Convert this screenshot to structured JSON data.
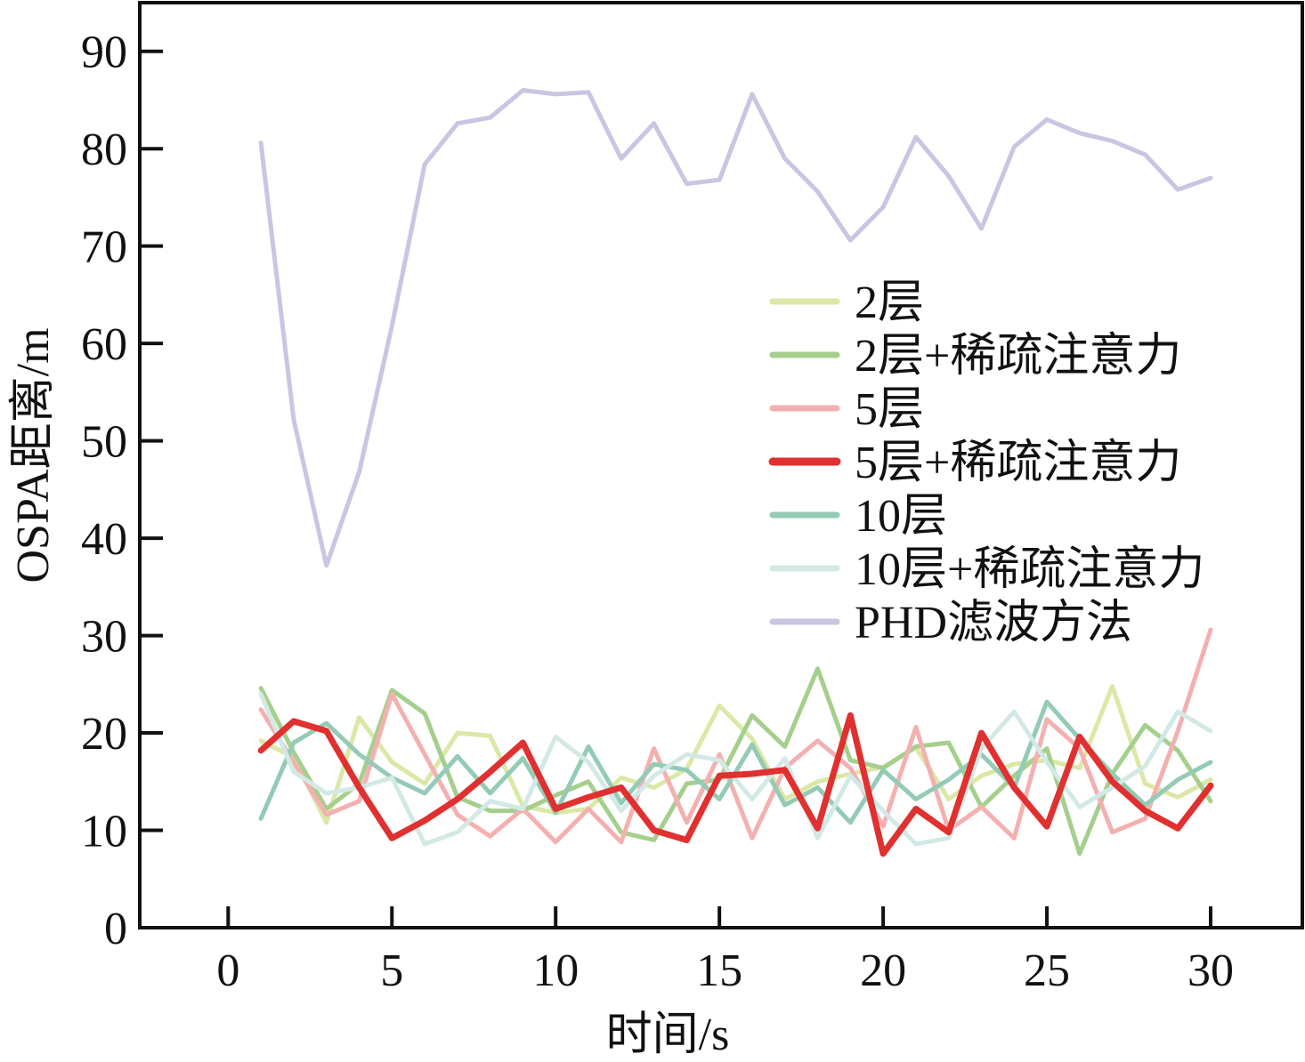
{
  "chart_data": {
    "type": "line",
    "title": "",
    "xlabel": "时间/s",
    "ylabel": "OSPA距离/m",
    "xlim": [
      -2.7,
      32.8
    ],
    "ylim": [
      0,
      95
    ],
    "xticks": [
      0,
      5,
      10,
      15,
      20,
      25,
      30
    ],
    "yticks": [
      0,
      10,
      20,
      30,
      40,
      50,
      60,
      70,
      80,
      90
    ],
    "grid": false,
    "legend_position": "center-right",
    "x": [
      1,
      2,
      3,
      4,
      5,
      6,
      7,
      8,
      9,
      10,
      11,
      12,
      13,
      14,
      15,
      16,
      17,
      18,
      19,
      20,
      21,
      22,
      23,
      24,
      25,
      26,
      27,
      28,
      29,
      30
    ],
    "series": [
      {
        "name": "2层",
        "color": "#dbe8a6",
        "width": 5,
        "values": [
          19.2,
          17.5,
          10.8,
          21.6,
          17.0,
          14.8,
          20.0,
          19.7,
          12.5,
          11.8,
          12.2,
          15.4,
          14.4,
          16.3,
          22.8,
          19.4,
          13.2,
          15.0,
          15.8,
          16.5,
          18.5,
          13.2,
          15.6,
          16.8,
          17.2,
          16.4,
          24.8,
          14.8,
          13.4,
          15.2
        ]
      },
      {
        "name": "2层+稀疏注意力",
        "color": "#a5cf8c",
        "width": 5,
        "values": [
          24.6,
          18.0,
          12.2,
          14.8,
          24.4,
          22.0,
          13.4,
          12.0,
          12.0,
          13.6,
          15.0,
          9.8,
          9.0,
          14.8,
          15.2,
          21.8,
          18.6,
          26.6,
          17.2,
          16.4,
          18.6,
          19.0,
          12.4,
          15.6,
          18.4,
          7.6,
          15.8,
          20.8,
          18.2,
          13.0
        ]
      },
      {
        "name": "5层",
        "color": "#f4b0b0",
        "width": 5,
        "values": [
          22.4,
          17.0,
          11.6,
          13.0,
          24.0,
          17.8,
          11.6,
          9.4,
          12.2,
          8.8,
          12.2,
          8.8,
          18.4,
          10.8,
          17.8,
          9.2,
          16.4,
          19.2,
          16.4,
          10.4,
          20.6,
          10.0,
          12.4,
          9.2,
          21.4,
          18.4,
          9.8,
          11.2,
          20.2,
          30.6
        ]
      },
      {
        "name": "5层+稀疏注意力",
        "color": "#e03030",
        "width": 7,
        "values": [
          18.2,
          21.2,
          20.2,
          14.4,
          9.2,
          11.0,
          13.2,
          16.0,
          19.0,
          12.2,
          13.4,
          14.4,
          10.0,
          9.0,
          15.6,
          15.8,
          16.2,
          10.2,
          21.8,
          7.6,
          12.2,
          9.8,
          20.0,
          14.4,
          10.4,
          19.6,
          15.0,
          12.0,
          10.2,
          14.6
        ]
      },
      {
        "name": "10层",
        "color": "#94cbb5",
        "width": 5,
        "values": [
          11.2,
          19.0,
          21.0,
          17.8,
          15.4,
          13.8,
          17.6,
          13.8,
          17.4,
          11.8,
          18.6,
          12.8,
          16.8,
          16.2,
          13.2,
          18.8,
          12.6,
          14.4,
          10.8,
          16.2,
          13.2,
          15.2,
          17.8,
          14.4,
          23.2,
          19.4,
          15.8,
          12.6,
          15.2,
          17.0
        ]
      },
      {
        "name": "10层+稀疏注意力",
        "color": "#d2e9e6",
        "width": 5,
        "values": [
          24.0,
          16.0,
          13.8,
          14.4,
          15.4,
          8.6,
          9.8,
          13.0,
          12.2,
          19.6,
          17.0,
          12.0,
          15.6,
          17.8,
          17.2,
          13.2,
          17.4,
          9.2,
          15.6,
          12.0,
          8.6,
          9.2,
          18.4,
          22.2,
          17.0,
          12.4,
          14.4,
          16.6,
          22.2,
          20.2
        ]
      },
      {
        "name": "PHD滤波方法",
        "color": "#c8c6e2",
        "width": 5,
        "values": [
          80.6,
          52.2,
          37.2,
          46.8,
          61.8,
          78.4,
          82.6,
          83.2,
          86.0,
          85.6,
          85.8,
          79.0,
          82.6,
          76.4,
          76.8,
          85.6,
          79.0,
          75.6,
          70.6,
          74.0,
          81.2,
          77.2,
          71.8,
          80.2,
          83.0,
          81.6,
          80.8,
          79.4,
          75.8,
          77.0
        ]
      }
    ]
  }
}
